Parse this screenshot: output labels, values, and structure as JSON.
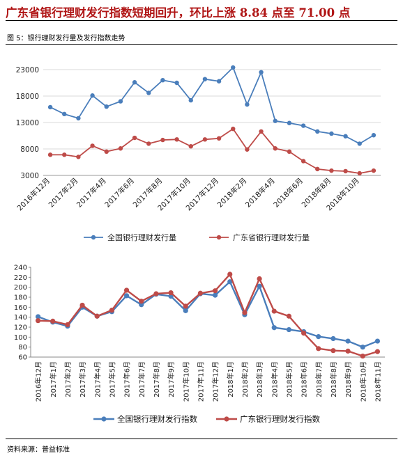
{
  "headline": "广东省银行理财发行指数短期回升，环比上涨 8.84 点至 71.00 点",
  "figure_label": "图 5：银行理财发行量及发行指数走势",
  "source": "资料来源：普益标准",
  "colors": {
    "national": "#4a7ebb",
    "guangdong": "#be4b48"
  },
  "chart_data": [
    {
      "type": "line",
      "x": [
        "2016年12月",
        "2017年1月",
        "2017年2月",
        "2017年3月",
        "2017年4月",
        "2017年5月",
        "2017年6月",
        "2017年7月",
        "2017年8月",
        "2017年9月",
        "2017年10月",
        "2017年11月",
        "2017年12月",
        "2018年1月",
        "2018年2月",
        "2018年3月",
        "2018年4月",
        "2018年5月",
        "2018年6月",
        "2018年7月",
        "2018年8月",
        "2018年9月",
        "2018年10月",
        "2018年11月"
      ],
      "x_tick_labels": [
        "2016年12月",
        "",
        "2017年2月",
        "",
        "2017年4月",
        "",
        "2017年6月",
        "",
        "2017年8月",
        "",
        "2017年10月",
        "",
        "2017年12月",
        "",
        "2018年2月",
        "",
        "2018年4月",
        "",
        "2018年6月",
        "",
        "2018年8月",
        "",
        "2018年10月",
        ""
      ],
      "series": [
        {
          "name": "全国银行理财发行量",
          "values": [
            15900,
            14600,
            13800,
            18100,
            16000,
            17000,
            20600,
            18600,
            21000,
            20500,
            17200,
            21200,
            20800,
            23400,
            16400,
            22500,
            13300,
            12900,
            12400,
            11300,
            10900,
            10400,
            9000,
            10600
          ]
        },
        {
          "name": "广东省银行理财发行量",
          "values": [
            6900,
            6900,
            6500,
            8600,
            7500,
            8100,
            10100,
            9000,
            9700,
            9800,
            8500,
            9800,
            10000,
            11800,
            7900,
            11300,
            8100,
            7500,
            5700,
            4200,
            3900,
            3800,
            3400,
            3900
          ]
        }
      ],
      "ylim": [
        3000,
        23000
      ],
      "yticks": [
        3000,
        8000,
        13000,
        18000,
        23000
      ],
      "legend": "bottom"
    },
    {
      "type": "line",
      "x": [
        "2016年12月",
        "2017年1月",
        "2017年2月",
        "2017年3月",
        "2017年4月",
        "2017年5月",
        "2017年6月",
        "2017年7月",
        "2017年8月",
        "2017年9月",
        "2017年10月",
        "2017年11月",
        "2017年12月",
        "2018年1月",
        "2018年2月",
        "2018年3月",
        "2018年4月",
        "2018年5月",
        "2018年6月",
        "2018年7月",
        "2018年8月",
        "2018年9月",
        "2018年10月",
        "2018年11月"
      ],
      "series": [
        {
          "name": "全国银行理财发行指数",
          "values": [
            141,
            130,
            122,
            160,
            142,
            151,
            183,
            165,
            186,
            182,
            153,
            187,
            184,
            211,
            145,
            202,
            119,
            115,
            111,
            101,
            97,
            92,
            80,
            92
          ]
        },
        {
          "name": "广东银行理财发行指数",
          "values": [
            133,
            132,
            125,
            164,
            142,
            154,
            194,
            172,
            187,
            189,
            162,
            188,
            193,
            226,
            149,
            217,
            152,
            142,
            108,
            77,
            73,
            72,
            62,
            71
          ]
        }
      ],
      "ylim": [
        60,
        240
      ],
      "yticks": [
        60,
        80,
        100,
        120,
        140,
        160,
        180,
        200,
        220,
        240
      ],
      "legend": "bottom"
    }
  ]
}
